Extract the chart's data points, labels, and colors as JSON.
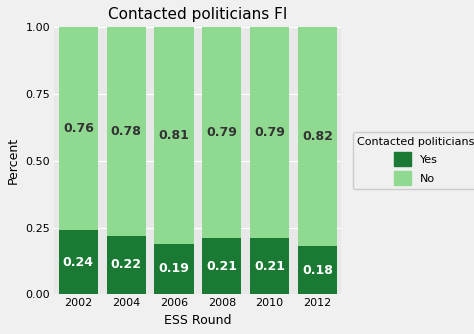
{
  "title": "Contacted politicians FI",
  "xlabel": "ESS Round",
  "ylabel": "Percent",
  "categories": [
    "2002",
    "2004",
    "2006",
    "2008",
    "2010",
    "2012"
  ],
  "yes_values": [
    0.24,
    0.22,
    0.19,
    0.21,
    0.21,
    0.18
  ],
  "no_values": [
    0.76,
    0.78,
    0.81,
    0.79,
    0.79,
    0.82
  ],
  "color_yes": "#1a7a34",
  "color_no": "#90d990",
  "plot_bg_color": "#e8e8e8",
  "fig_bg_color": "#f0f0f0",
  "legend_title": "Contacted politicians",
  "ylim": [
    0.0,
    1.0
  ],
  "yticks": [
    0.0,
    0.25,
    0.5,
    0.75,
    1.0
  ],
  "ytick_labels": [
    "0.00",
    "0.25",
    "0.50",
    "0.75",
    "1.00"
  ],
  "bar_width": 0.82,
  "title_fontsize": 11,
  "axis_label_fontsize": 9,
  "tick_fontsize": 8,
  "label_fontsize": 9
}
